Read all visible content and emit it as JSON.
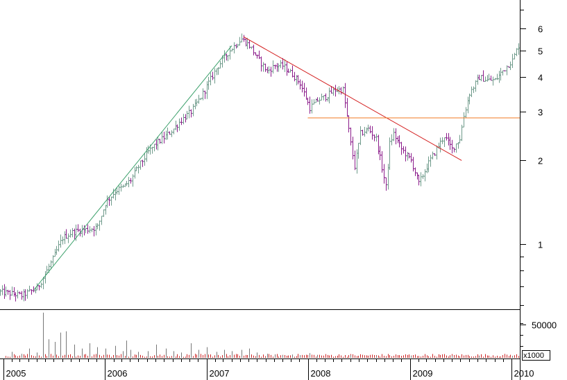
{
  "chart_data": {
    "type": "candlestick",
    "title": "",
    "xlabel": "",
    "ylabel": "",
    "y_scale": "log",
    "ylim": [
      0.58,
      7.6
    ],
    "price_ticks": [
      1,
      2,
      3,
      4,
      5,
      6
    ],
    "volume_ticks": [
      50000
    ],
    "volume_unit_label": "x1000",
    "x_ticks": [
      "2005",
      "2006",
      "2007",
      "2008",
      "2009",
      "2010"
    ],
    "x_range": [
      "2004-12-20",
      "2010-01-31"
    ],
    "grid": false,
    "colors": {
      "bar_up": "#6e9a8a",
      "bar_down": "#8a1a8a",
      "uptrend_line": "#3aa06a",
      "downtrend_line": "#d42020",
      "support_line": "#f07820",
      "volume": "#cc2222",
      "axis": "#000000"
    },
    "price_series_weekly_close": [
      [
        "2004-12-20",
        0.67
      ],
      [
        "2005-01-31",
        0.66
      ],
      [
        "2005-03-07",
        0.65
      ],
      [
        "2005-04-04",
        0.67
      ],
      [
        "2005-05-02",
        0.69
      ],
      [
        "2005-06-06",
        0.8
      ],
      [
        "2005-06-27",
        0.88
      ],
      [
        "2005-08-01",
        1.05
      ],
      [
        "2005-09-05",
        1.1
      ],
      [
        "2005-10-03",
        1.12
      ],
      [
        "2005-11-07",
        1.13
      ],
      [
        "2005-12-05",
        1.15
      ],
      [
        "2006-01-02",
        1.4
      ],
      [
        "2006-02-06",
        1.55
      ],
      [
        "2006-03-06",
        1.6
      ],
      [
        "2006-04-03",
        1.7
      ],
      [
        "2006-05-01",
        1.9
      ],
      [
        "2006-06-05",
        2.15
      ],
      [
        "2006-07-03",
        2.3
      ],
      [
        "2006-08-07",
        2.45
      ],
      [
        "2006-09-04",
        2.6
      ],
      [
        "2006-10-02",
        2.8
      ],
      [
        "2006-11-06",
        3.0
      ],
      [
        "2006-12-04",
        3.3
      ],
      [
        "2007-01-01",
        3.7
      ],
      [
        "2007-02-05",
        4.3
      ],
      [
        "2007-03-05",
        4.7
      ],
      [
        "2007-04-02",
        5.1
      ],
      [
        "2007-05-07",
        5.5
      ],
      [
        "2007-06-04",
        5.2
      ],
      [
        "2007-07-02",
        4.7
      ],
      [
        "2007-08-06",
        4.2
      ],
      [
        "2007-09-03",
        4.4
      ],
      [
        "2007-10-01",
        4.4
      ],
      [
        "2007-11-05",
        4.1
      ],
      [
        "2007-12-03",
        3.8
      ],
      [
        "2008-01-07",
        3.1
      ],
      [
        "2008-02-04",
        3.3
      ],
      [
        "2008-03-03",
        3.4
      ],
      [
        "2008-04-07",
        3.6
      ],
      [
        "2008-05-05",
        3.6
      ],
      [
        "2008-06-02",
        2.3
      ],
      [
        "2008-06-16",
        1.9
      ],
      [
        "2008-07-07",
        2.5
      ],
      [
        "2008-08-04",
        2.6
      ],
      [
        "2008-09-01",
        2.4
      ],
      [
        "2008-10-06",
        1.6
      ],
      [
        "2008-10-20",
        2.3
      ],
      [
        "2008-11-03",
        2.5
      ],
      [
        "2008-12-01",
        2.2
      ],
      [
        "2009-01-05",
        2.0
      ],
      [
        "2009-02-02",
        1.65
      ],
      [
        "2009-03-02",
        1.9
      ],
      [
        "2009-04-06",
        2.2
      ],
      [
        "2009-05-04",
        2.45
      ],
      [
        "2009-06-01",
        2.2
      ],
      [
        "2009-06-29",
        2.4
      ],
      [
        "2009-07-13",
        2.9
      ],
      [
        "2009-08-03",
        3.5
      ],
      [
        "2009-09-07",
        4.0
      ],
      [
        "2009-10-05",
        3.9
      ],
      [
        "2009-11-02",
        3.9
      ],
      [
        "2009-12-07",
        4.3
      ],
      [
        "2010-01-04",
        4.6
      ],
      [
        "2010-01-25",
        5.2
      ]
    ],
    "volume_series": [
      [
        "2005-01-31",
        9000
      ],
      [
        "2005-03-07",
        6000
      ],
      [
        "2005-04-04",
        14000
      ],
      [
        "2005-05-02",
        8000
      ],
      [
        "2005-05-23",
        68000
      ],
      [
        "2005-06-13",
        28000
      ],
      [
        "2005-07-04",
        24000
      ],
      [
        "2005-07-25",
        38000
      ],
      [
        "2005-08-15",
        40000
      ],
      [
        "2005-09-12",
        20000
      ],
      [
        "2005-10-10",
        14000
      ],
      [
        "2005-11-07",
        22000
      ],
      [
        "2005-12-05",
        16000
      ],
      [
        "2006-01-02",
        14000
      ],
      [
        "2006-02-06",
        18000
      ],
      [
        "2006-03-06",
        10000
      ],
      [
        "2006-03-20",
        26000
      ],
      [
        "2006-04-03",
        12000
      ],
      [
        "2006-05-01",
        9000
      ],
      [
        "2006-06-05",
        10000
      ],
      [
        "2006-07-03",
        20000
      ],
      [
        "2006-08-07",
        14000
      ],
      [
        "2006-09-04",
        10000
      ],
      [
        "2006-10-02",
        8000
      ],
      [
        "2006-11-06",
        22000
      ],
      [
        "2006-12-04",
        12000
      ],
      [
        "2007-01-01",
        16000
      ],
      [
        "2007-02-05",
        9000
      ],
      [
        "2007-03-05",
        12000
      ],
      [
        "2007-04-02",
        10000
      ],
      [
        "2007-05-07",
        12000
      ],
      [
        "2007-06-04",
        14000
      ],
      [
        "2007-07-02",
        8000
      ],
      [
        "2007-08-06",
        6000
      ],
      [
        "2007-09-03",
        5000
      ],
      [
        "2007-10-01",
        4000
      ],
      [
        "2007-11-05",
        5000
      ],
      [
        "2007-12-03",
        4000
      ],
      [
        "2008-01-07",
        7000
      ],
      [
        "2008-02-04",
        4000
      ],
      [
        "2008-06-02",
        4000
      ],
      [
        "2008-09-01",
        3000
      ],
      [
        "2009-01-05",
        3000
      ],
      [
        "2009-06-01",
        3000
      ],
      [
        "2009-09-07",
        3000
      ],
      [
        "2010-01-04",
        3000
      ]
    ],
    "annotations": [
      {
        "name": "uptrend-line",
        "start": [
          "2005-04-20",
          0.68
        ],
        "end": [
          "2007-04-02",
          5.2
        ]
      },
      {
        "name": "downtrend-line",
        "start": [
          "2007-05-14",
          5.6
        ],
        "end": [
          "2009-07-06",
          2.0
        ]
      },
      {
        "name": "support-line",
        "start": [
          "2007-12-31",
          2.85
        ],
        "end": [
          "2010-01-31",
          2.85
        ]
      }
    ]
  }
}
